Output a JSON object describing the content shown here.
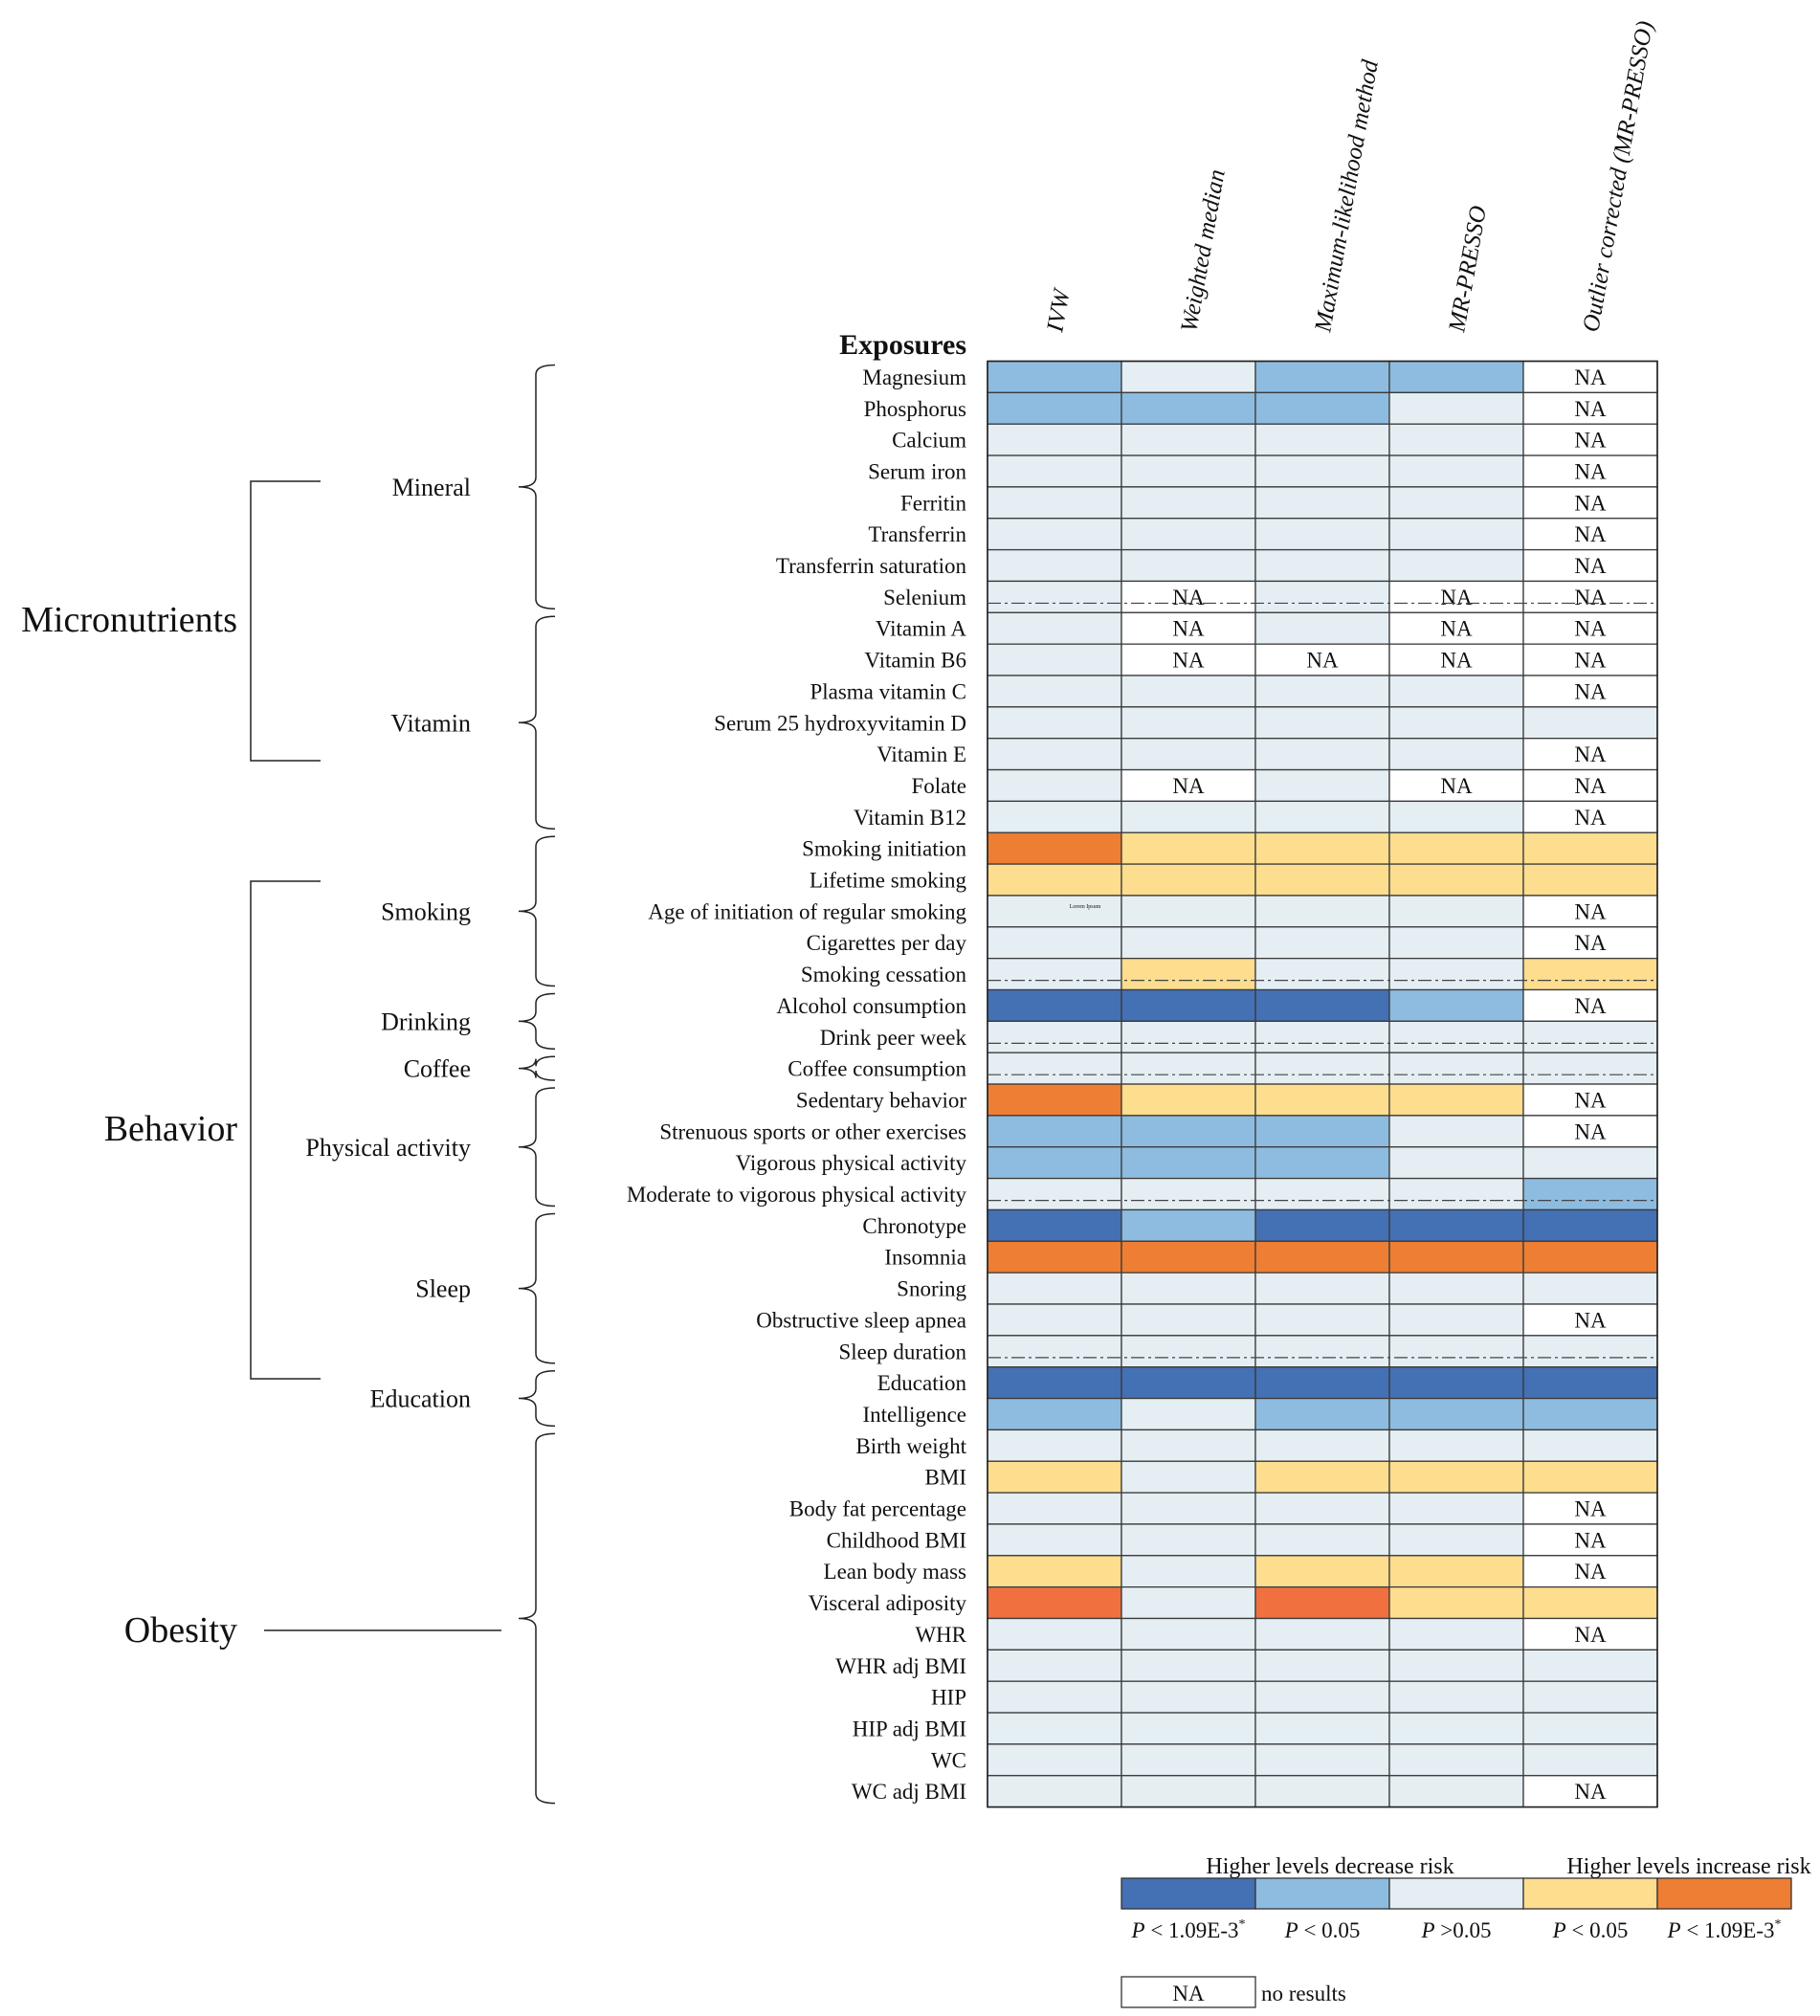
{
  "chart_data": {
    "type": "heatmap",
    "exposures_label": "Exposures",
    "columns": [
      "IVW",
      "Weighted median",
      "Maximum-likelihood method",
      "MR-PRESSO",
      "Outlier corrected (MR-PRESSO)"
    ],
    "palette": {
      "dec_strong": "#4470B4",
      "dec": "#8DBCE0",
      "ns": "#E4EEF3",
      "inc": "#FDDD8E",
      "inc_strong": "#ED7E33",
      "inc_strong_alt": "#F1703F",
      "na": "#FFFFFF"
    },
    "rows": [
      {
        "name": "Magnesium",
        "cells": [
          "dec",
          "ns",
          "dec",
          "dec",
          "na"
        ]
      },
      {
        "name": "Phosphorus",
        "cells": [
          "dec",
          "dec",
          "dec",
          "ns",
          "na"
        ]
      },
      {
        "name": "Calcium",
        "cells": [
          "ns",
          "ns",
          "ns",
          "ns",
          "na"
        ]
      },
      {
        "name": "Serum iron",
        "cells": [
          "ns",
          "ns",
          "ns",
          "ns",
          "na"
        ]
      },
      {
        "name": "Ferritin",
        "cells": [
          "ns",
          "ns",
          "ns",
          "ns",
          "na"
        ]
      },
      {
        "name": "Transferrin",
        "cells": [
          "ns",
          "ns",
          "ns",
          "ns",
          "na"
        ]
      },
      {
        "name": "Transferrin saturation",
        "cells": [
          "ns",
          "ns",
          "ns",
          "ns",
          "na"
        ]
      },
      {
        "name": "Selenium",
        "cells": [
          "ns",
          "na",
          "ns",
          "na",
          "na"
        ]
      },
      {
        "name": "Vitamin A",
        "cells": [
          "ns",
          "na",
          "ns",
          "na",
          "na"
        ]
      },
      {
        "name": "Vitamin B6",
        "cells": [
          "ns",
          "na",
          "na",
          "na",
          "na"
        ]
      },
      {
        "name": "Plasma vitamin C",
        "cells": [
          "ns",
          "ns",
          "ns",
          "ns",
          "na"
        ]
      },
      {
        "name": "Serum 25 hydroxyvitamin D",
        "cells": [
          "ns",
          "ns",
          "ns",
          "ns",
          "ns"
        ]
      },
      {
        "name": "Vitamin E",
        "cells": [
          "ns",
          "ns",
          "ns",
          "ns",
          "na"
        ]
      },
      {
        "name": "Folate",
        "cells": [
          "ns",
          "na",
          "ns",
          "na",
          "na"
        ]
      },
      {
        "name": "Vitamin B12",
        "cells": [
          "ns",
          "ns",
          "ns",
          "ns",
          "na"
        ]
      },
      {
        "name": "Smoking initiation",
        "cells": [
          "inc_strong",
          "inc",
          "inc",
          "inc",
          "inc"
        ]
      },
      {
        "name": "Lifetime smoking",
        "cells": [
          "inc",
          "inc",
          "inc",
          "inc",
          "inc"
        ]
      },
      {
        "name": "Age of initiation of regular smoking",
        "cells": [
          "ns",
          "ns",
          "ns",
          "ns",
          "na"
        ]
      },
      {
        "name": "Cigarettes per day",
        "cells": [
          "ns",
          "ns",
          "ns",
          "ns",
          "na"
        ]
      },
      {
        "name": "Smoking cessation",
        "cells": [
          "ns",
          "inc",
          "ns",
          "ns",
          "inc"
        ]
      },
      {
        "name": "Alcohol consumption",
        "cells": [
          "dec_strong",
          "dec_strong",
          "dec_strong",
          "dec",
          "na"
        ]
      },
      {
        "name": "Drink peer week",
        "cells": [
          "ns",
          "ns",
          "ns",
          "ns",
          "ns"
        ]
      },
      {
        "name": "Coffee consumption",
        "cells": [
          "ns",
          "ns",
          "ns",
          "ns",
          "ns"
        ]
      },
      {
        "name": "Sedentary behavior",
        "cells": [
          "inc_strong",
          "inc",
          "inc",
          "inc",
          "na"
        ]
      },
      {
        "name": "Strenuous sports or other exercises",
        "cells": [
          "dec",
          "dec",
          "dec",
          "ns",
          "na"
        ]
      },
      {
        "name": "Vigorous physical activity",
        "cells": [
          "dec",
          "dec",
          "dec",
          "ns",
          "ns"
        ]
      },
      {
        "name": "Moderate to vigorous physical activity",
        "cells": [
          "ns",
          "ns",
          "ns",
          "ns",
          "dec"
        ]
      },
      {
        "name": "Chronotype",
        "cells": [
          "dec_strong",
          "dec",
          "dec_strong",
          "dec_strong",
          "dec_strong"
        ]
      },
      {
        "name": "Insomnia",
        "cells": [
          "inc_strong",
          "inc_strong",
          "inc_strong",
          "inc_strong",
          "inc_strong"
        ]
      },
      {
        "name": "Snoring",
        "cells": [
          "ns",
          "ns",
          "ns",
          "ns",
          "ns"
        ]
      },
      {
        "name": "Obstructive sleep apnea",
        "cells": [
          "ns",
          "ns",
          "ns",
          "ns",
          "na"
        ]
      },
      {
        "name": "Sleep duration",
        "cells": [
          "ns",
          "ns",
          "ns",
          "ns",
          "ns"
        ]
      },
      {
        "name": "Education",
        "cells": [
          "dec_strong",
          "dec_strong",
          "dec_strong",
          "dec_strong",
          "dec_strong"
        ]
      },
      {
        "name": "Intelligence",
        "cells": [
          "dec",
          "ns",
          "dec",
          "dec",
          "dec"
        ]
      },
      {
        "name": "Birth weight",
        "cells": [
          "ns",
          "ns",
          "ns",
          "ns",
          "ns"
        ]
      },
      {
        "name": "BMI",
        "cells": [
          "inc",
          "ns",
          "inc",
          "inc",
          "inc"
        ]
      },
      {
        "name": "Body fat percentage",
        "cells": [
          "ns",
          "ns",
          "ns",
          "ns",
          "na"
        ]
      },
      {
        "name": "Childhood BMI",
        "cells": [
          "ns",
          "ns",
          "ns",
          "ns",
          "na"
        ]
      },
      {
        "name": "Lean body mass",
        "cells": [
          "inc",
          "ns",
          "inc",
          "inc",
          "na"
        ]
      },
      {
        "name": "Visceral adiposity",
        "cells": [
          "inc_strong_alt",
          "ns",
          "inc_strong_alt",
          "inc",
          "inc"
        ]
      },
      {
        "name": "WHR",
        "cells": [
          "ns",
          "ns",
          "ns",
          "ns",
          "na"
        ]
      },
      {
        "name": "WHR adj BMI",
        "cells": [
          "ns",
          "ns",
          "ns",
          "ns",
          "ns"
        ]
      },
      {
        "name": "HIP",
        "cells": [
          "ns",
          "ns",
          "ns",
          "ns",
          "ns"
        ]
      },
      {
        "name": "HIP adj BMI",
        "cells": [
          "ns",
          "ns",
          "ns",
          "ns",
          "ns"
        ]
      },
      {
        "name": "WC",
        "cells": [
          "ns",
          "ns",
          "ns",
          "ns",
          "ns"
        ]
      },
      {
        "name": "WC adj BMI",
        "cells": [
          "ns",
          "ns",
          "ns",
          "ns",
          "na"
        ]
      }
    ],
    "na_text": "NA",
    "dashed_separator_after_rows": [
      "Selenium",
      "Smoking cessation",
      "Drink peer week",
      "Coffee consumption",
      "Moderate to vigorous physical activity",
      "Sleep duration"
    ],
    "categories": [
      {
        "name": "Micronutrients",
        "first_row": 0,
        "last_row": 14
      },
      {
        "name": "Behavior",
        "first_row": 15,
        "last_row": 33
      },
      {
        "name": "Obesity",
        "first_row": 34,
        "last_row": 45
      }
    ],
    "subcategories": [
      {
        "name": "Mineral",
        "first_row": 0,
        "last_row": 7
      },
      {
        "name": "Vitamin",
        "first_row": 8,
        "last_row": 14
      },
      {
        "name": "Smoking",
        "first_row": 15,
        "last_row": 19
      },
      {
        "name": "Drinking",
        "first_row": 20,
        "last_row": 21
      },
      {
        "name": "Coffee",
        "first_row": 22,
        "last_row": 22
      },
      {
        "name": "Physical activity",
        "first_row": 23,
        "last_row": 26
      },
      {
        "name": "Sleep",
        "first_row": 27,
        "last_row": 31
      },
      {
        "name": "Education",
        "first_row": 32,
        "last_row": 33
      }
    ],
    "legend": {
      "left_title": "Higher levels decrease risk",
      "right_title": "Higher levels increase risk",
      "items": [
        {
          "key": "dec_strong",
          "p": "P",
          "label": " < 1.09E-3",
          "sup": "*"
        },
        {
          "key": "dec",
          "p": "P",
          "label": " < 0.05",
          "sup": ""
        },
        {
          "key": "ns",
          "p": "P",
          "label": " >0.05",
          "sup": ""
        },
        {
          "key": "inc",
          "p": "P",
          "label": " < 0.05",
          "sup": ""
        },
        {
          "key": "inc_strong",
          "p": "P",
          "label": " < 1.09E-3",
          "sup": "*"
        }
      ],
      "na_box": "NA",
      "na_label": "no results"
    },
    "stray_text": "Lorem Ipsum"
  }
}
